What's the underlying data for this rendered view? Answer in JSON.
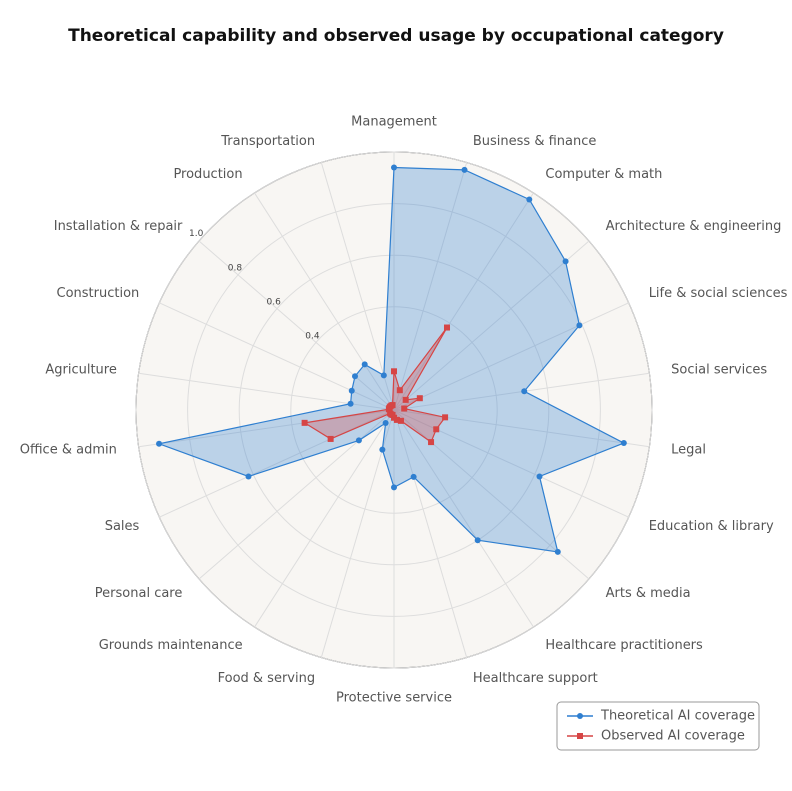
{
  "chart_data": {
    "type": "radar",
    "title": "Theoretical capability and observed usage by occupational category",
    "categories": [
      "Management",
      "Business & finance",
      "Computer & math",
      "Architecture & engineering",
      "Life & social sciences",
      "Social services",
      "Legal",
      "Education & library",
      "Arts & media",
      "Healthcare practitioners",
      "Healthcare support",
      "Protective service",
      "Food & serving",
      "Grounds maintenance",
      "Personal care",
      "Sales",
      "Office & admin",
      "Agriculture",
      "Construction",
      "Installation & repair",
      "Production",
      "Transportation"
    ],
    "series": [
      {
        "name": "Theoretical AI coverage",
        "color": "#2f7fd0",
        "marker": "circle",
        "values": [
          0.94,
          0.97,
          0.97,
          0.88,
          0.79,
          0.51,
          0.9,
          0.62,
          0.84,
          0.6,
          0.27,
          0.3,
          0.16,
          0.06,
          0.18,
          0.62,
          0.92,
          0.17,
          0.18,
          0.2,
          0.21,
          0.14
        ]
      },
      {
        "name": "Observed AI coverage",
        "color": "#d64545",
        "marker": "square",
        "values": [
          0.15,
          0.08,
          0.38,
          0.06,
          0.11,
          0.04,
          0.2,
          0.18,
          0.19,
          0.05,
          0.04,
          0.03,
          0.02,
          0.02,
          0.02,
          0.27,
          0.35,
          0.02,
          0.02,
          0.02,
          0.02,
          0.02
        ]
      }
    ],
    "ylim": [
      0,
      1
    ],
    "yticks": [
      0.4,
      0.6,
      0.8,
      {
        "value": 1,
        "label": "1.0"
      }
    ],
    "grid": true,
    "legend": "lower right"
  }
}
